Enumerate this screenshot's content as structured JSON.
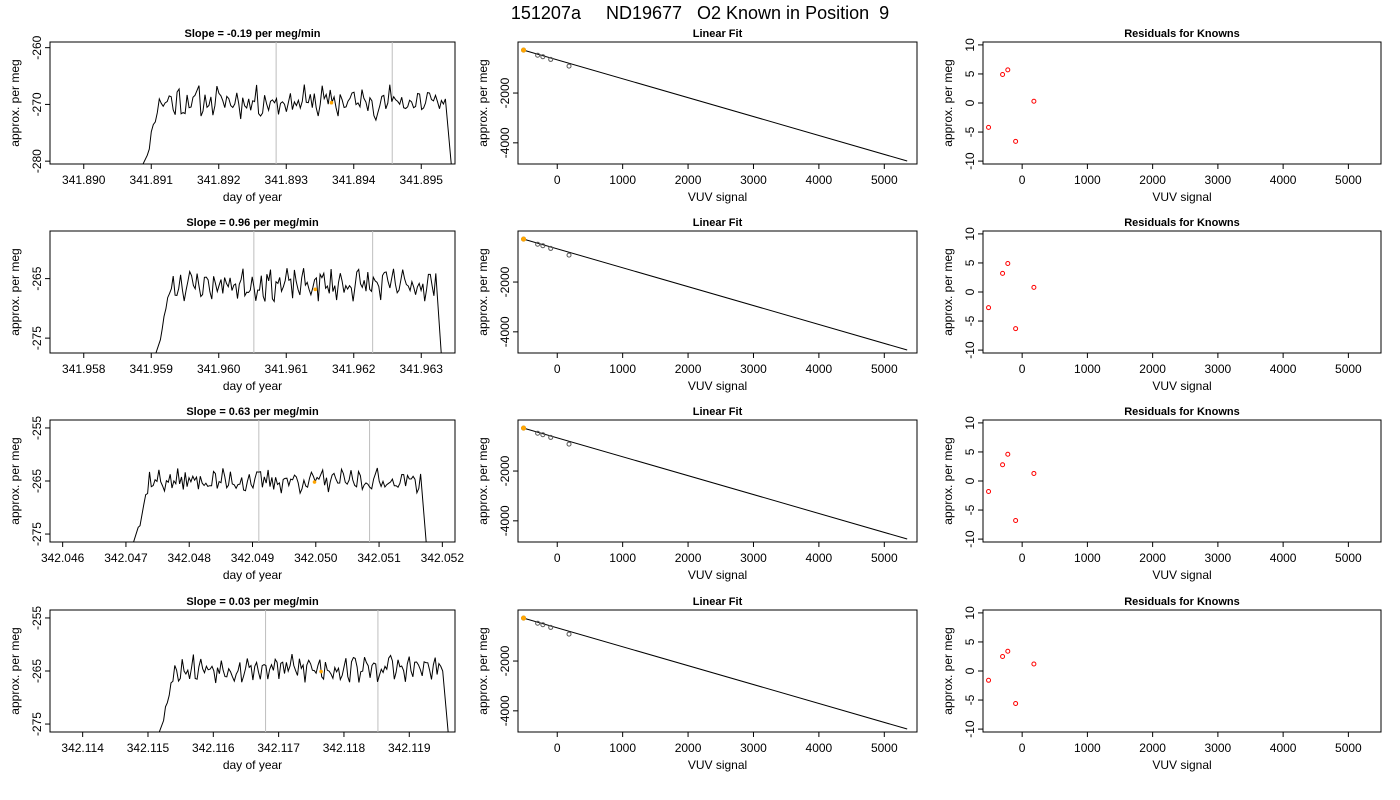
{
  "main_title": "151207a     ND19677   O2 Known in Position  9",
  "colors": {
    "trace": "#000000",
    "marker": "#ffa500",
    "residual_point": "#ff0000",
    "vline": "#bebebe",
    "fit_line": "#000000"
  },
  "chart_data": [
    {
      "type": "line",
      "row": 0,
      "col": 0,
      "title": "Slope =  -0.19  per meg/min",
      "xlabel": "day of year",
      "ylabel": "approx. per meg",
      "xlim": [
        341.8895,
        341.8955
      ],
      "ylim": [
        -280.5,
        -259.0
      ],
      "xticks": [
        341.89,
        341.891,
        341.892,
        341.893,
        341.894,
        341.895
      ],
      "xtick_labels": [
        "341.890",
        "341.891",
        "341.892",
        "341.893",
        "341.894",
        "341.895"
      ],
      "yticks": [
        -280,
        -270,
        -260
      ],
      "ytick_labels": [
        "-280",
        "-270",
        "-260"
      ],
      "trace_start": 341.89085,
      "trace_end": 341.89545,
      "trace_level": -269.5,
      "trace_amp": 2.2,
      "vlines": [
        341.89285,
        341.89457
      ],
      "marker": {
        "x": 341.89367,
        "y": -269.7
      },
      "seed": 11
    },
    {
      "type": "scatter",
      "row": 0,
      "col": 1,
      "title": "Linear Fit",
      "xlabel": "VUV signal",
      "ylabel": "approx. per meg",
      "xlim": [
        -600,
        5500
      ],
      "ylim": [
        -4850,
        50
      ],
      "xticks": [
        0,
        1000,
        2000,
        3000,
        4000,
        5000
      ],
      "xtick_labels": [
        "0",
        "1000",
        "2000",
        "3000",
        "4000",
        "5000"
      ],
      "yticks": [
        -4000,
        -2000
      ],
      "ytick_labels": [
        "-4000",
        "-2000"
      ],
      "points": [
        [
          -515,
          -275
        ],
        [
          -300,
          -480
        ],
        [
          -220,
          -540
        ],
        [
          -100,
          -650
        ],
        [
          180,
          -920
        ]
      ],
      "fit_line": [
        [
          -515,
          -275
        ],
        [
          5350,
          -4730
        ]
      ],
      "marker": {
        "x": -515,
        "y": -275
      }
    },
    {
      "type": "scatter",
      "row": 0,
      "col": 2,
      "title": "Residuals for Knowns",
      "xlabel": "VUV signal",
      "ylabel": "approx. per meg",
      "xlim": [
        -600,
        5500
      ],
      "ylim": [
        -10.5,
        10.5
      ],
      "xticks": [
        0,
        1000,
        2000,
        3000,
        4000,
        5000
      ],
      "xtick_labels": [
        "0",
        "1000",
        "2000",
        "3000",
        "4000",
        "5000"
      ],
      "yticks": [
        -10,
        -5,
        0,
        5,
        10
      ],
      "ytick_labels": [
        "-10",
        "-5",
        "0",
        "5",
        "10"
      ],
      "points": [
        [
          -515,
          -4.2
        ],
        [
          -300,
          4.9
        ],
        [
          -220,
          5.7
        ],
        [
          -100,
          -6.6
        ],
        [
          180,
          0.3
        ]
      ]
    },
    {
      "type": "line",
      "row": 1,
      "col": 0,
      "title": "Slope =  0.96  per meg/min",
      "xlabel": "day of year",
      "ylabel": "approx. per meg",
      "xlim": [
        341.9575,
        341.9635
      ],
      "ylim": [
        -277.5,
        -257.0
      ],
      "xticks": [
        341.958,
        341.959,
        341.96,
        341.961,
        341.962,
        341.963
      ],
      "xtick_labels": [
        "341.958",
        "341.959",
        "341.960",
        "341.961",
        "341.962",
        "341.963"
      ],
      "yticks": [
        -275,
        -265
      ],
      "ytick_labels": [
        "-275",
        "-265"
      ],
      "trace_start": 341.95905,
      "trace_end": 341.9633,
      "trace_level": -266.0,
      "trace_amp": 2.0,
      "vlines": [
        341.96052,
        341.96228
      ],
      "marker": {
        "x": 341.96143,
        "y": -266.8
      },
      "seed": 23
    },
    {
      "type": "scatter",
      "row": 1,
      "col": 1,
      "title": "Linear Fit",
      "xlabel": "VUV signal",
      "ylabel": "approx. per meg",
      "xlim": [
        -600,
        5500
      ],
      "ylim": [
        -4850,
        50
      ],
      "xticks": [
        0,
        1000,
        2000,
        3000,
        4000,
        5000
      ],
      "xtick_labels": [
        "0",
        "1000",
        "2000",
        "3000",
        "4000",
        "5000"
      ],
      "yticks": [
        -4000,
        -2000
      ],
      "ytick_labels": [
        "-4000",
        "-2000"
      ],
      "points": [
        [
          -515,
          -275
        ],
        [
          -300,
          -480
        ],
        [
          -220,
          -540
        ],
        [
          -100,
          -650
        ],
        [
          180,
          -920
        ]
      ],
      "fit_line": [
        [
          -515,
          -275
        ],
        [
          5350,
          -4730
        ]
      ],
      "marker": {
        "x": -515,
        "y": -275
      }
    },
    {
      "type": "scatter",
      "row": 1,
      "col": 2,
      "title": "Residuals for Knowns",
      "xlabel": "VUV signal",
      "ylabel": "approx. per meg",
      "xlim": [
        -600,
        5500
      ],
      "ylim": [
        -10.5,
        10.5
      ],
      "xticks": [
        0,
        1000,
        2000,
        3000,
        4000,
        5000
      ],
      "xtick_labels": [
        "0",
        "1000",
        "2000",
        "3000",
        "4000",
        "5000"
      ],
      "yticks": [
        -10,
        -5,
        0,
        5,
        10
      ],
      "ytick_labels": [
        "-10",
        "-5",
        "0",
        "5",
        "10"
      ],
      "points": [
        [
          -515,
          -2.7
        ],
        [
          -300,
          3.2
        ],
        [
          -220,
          4.9
        ],
        [
          -100,
          -6.3
        ],
        [
          180,
          0.8
        ]
      ]
    },
    {
      "type": "line",
      "row": 2,
      "col": 0,
      "title": "Slope =  0.63  per meg/min",
      "xlabel": "day of year",
      "ylabel": "approx. per meg",
      "xlim": [
        342.0458,
        342.0522
      ],
      "ylim": [
        -276.5,
        -253.5
      ],
      "xticks": [
        342.046,
        342.047,
        342.048,
        342.049,
        342.05,
        342.051,
        342.052
      ],
      "xtick_labels": [
        "342.046",
        "342.047",
        "342.048",
        "342.049",
        "342.050",
        "342.051",
        "342.052"
      ],
      "yticks": [
        -275,
        -265,
        -255
      ],
      "ytick_labels": [
        "-275",
        "-265",
        "-255"
      ],
      "trace_start": 342.0471,
      "trace_end": 342.05175,
      "trace_level": -265.0,
      "trace_amp": 1.7,
      "vlines": [
        342.0491,
        342.05085
      ],
      "marker": {
        "x": 342.04998,
        "y": -265.2
      },
      "seed": 37
    },
    {
      "type": "scatter",
      "row": 2,
      "col": 1,
      "title": "Linear Fit",
      "xlabel": "VUV signal",
      "ylabel": "approx. per meg",
      "xlim": [
        -600,
        5500
      ],
      "ylim": [
        -4850,
        50
      ],
      "xticks": [
        0,
        1000,
        2000,
        3000,
        4000,
        5000
      ],
      "xtick_labels": [
        "0",
        "1000",
        "2000",
        "3000",
        "4000",
        "5000"
      ],
      "yticks": [
        -4000,
        -2000
      ],
      "ytick_labels": [
        "-4000",
        "-2000"
      ],
      "points": [
        [
          -515,
          -275
        ],
        [
          -300,
          -480
        ],
        [
          -220,
          -540
        ],
        [
          -100,
          -650
        ],
        [
          180,
          -920
        ]
      ],
      "fit_line": [
        [
          -515,
          -275
        ],
        [
          5350,
          -4730
        ]
      ],
      "marker": {
        "x": -515,
        "y": -275
      }
    },
    {
      "type": "scatter",
      "row": 2,
      "col": 2,
      "title": "Residuals for Knowns",
      "xlabel": "VUV signal",
      "ylabel": "approx. per meg",
      "xlim": [
        -600,
        5500
      ],
      "ylim": [
        -10.5,
        10.5
      ],
      "xticks": [
        0,
        1000,
        2000,
        3000,
        4000,
        5000
      ],
      "xtick_labels": [
        "0",
        "1000",
        "2000",
        "3000",
        "4000",
        "5000"
      ],
      "yticks": [
        -10,
        -5,
        0,
        5,
        10
      ],
      "ytick_labels": [
        "-10",
        "-5",
        "0",
        "5",
        "10"
      ],
      "points": [
        [
          -515,
          -1.8
        ],
        [
          -300,
          2.8
        ],
        [
          -220,
          4.6
        ],
        [
          -100,
          -6.8
        ],
        [
          180,
          1.3
        ]
      ]
    },
    {
      "type": "line",
      "row": 3,
      "col": 0,
      "title": "Slope =  0.03  per meg/min",
      "xlabel": "day of year",
      "ylabel": "approx. per meg",
      "xlim": [
        342.1135,
        342.1197
      ],
      "ylim": [
        -276.5,
        -253.5
      ],
      "xticks": [
        342.114,
        342.115,
        342.116,
        342.117,
        342.118,
        342.119
      ],
      "xtick_labels": [
        "342.114",
        "342.115",
        "342.116",
        "342.117",
        "342.118",
        "342.119"
      ],
      "yticks": [
        -275,
        -265,
        -255
      ],
      "ytick_labels": [
        "-275",
        "-265",
        "-255"
      ],
      "trace_start": 342.11515,
      "trace_end": 342.1196,
      "trace_level": -264.5,
      "trace_amp": 2.0,
      "vlines": [
        342.1168,
        342.11852
      ],
      "marker": {
        "x": 342.11765,
        "y": -265.1
      },
      "seed": 53
    },
    {
      "type": "scatter",
      "row": 3,
      "col": 1,
      "title": "Linear Fit",
      "xlabel": "VUV signal",
      "ylabel": "approx. per meg",
      "xlim": [
        -600,
        5500
      ],
      "ylim": [
        -4850,
        50
      ],
      "xticks": [
        0,
        1000,
        2000,
        3000,
        4000,
        5000
      ],
      "xtick_labels": [
        "0",
        "1000",
        "2000",
        "3000",
        "4000",
        "5000"
      ],
      "yticks": [
        -4000,
        -2000
      ],
      "ytick_labels": [
        "-4000",
        "-2000"
      ],
      "points": [
        [
          -515,
          -275
        ],
        [
          -300,
          -480
        ],
        [
          -220,
          -540
        ],
        [
          -100,
          -650
        ],
        [
          180,
          -920
        ]
      ],
      "fit_line": [
        [
          -515,
          -275
        ],
        [
          5350,
          -4730
        ]
      ],
      "marker": {
        "x": -515,
        "y": -275
      }
    },
    {
      "type": "scatter",
      "row": 3,
      "col": 2,
      "title": "Residuals for Knowns",
      "xlabel": "VUV signal",
      "ylabel": "approx. per meg",
      "xlim": [
        -600,
        5500
      ],
      "ylim": [
        -10.5,
        10.5
      ],
      "xticks": [
        0,
        1000,
        2000,
        3000,
        4000,
        5000
      ],
      "xtick_labels": [
        "0",
        "1000",
        "2000",
        "3000",
        "4000",
        "5000"
      ],
      "yticks": [
        -10,
        -5,
        0,
        5,
        10
      ],
      "ytick_labels": [
        "-10",
        "-5",
        "0",
        "5",
        "10"
      ],
      "points": [
        [
          -515,
          -1.6
        ],
        [
          -300,
          2.5
        ],
        [
          -220,
          3.4
        ],
        [
          -100,
          -5.6
        ],
        [
          180,
          1.2
        ]
      ]
    }
  ]
}
